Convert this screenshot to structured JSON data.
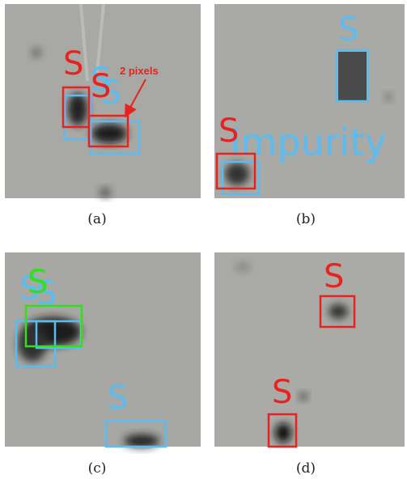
{
  "panels": [
    {
      "caption": "(a)",
      "labels": [
        "S",
        "S",
        "S",
        "S",
        "2 pixels"
      ]
    },
    {
      "caption": "(b)",
      "labels": [
        "S",
        "S",
        "Impurity"
      ]
    },
    {
      "caption": "(c)",
      "labels": [
        "S",
        "S",
        "S",
        "S"
      ]
    },
    {
      "caption": "(d)",
      "labels": [
        "S",
        "S"
      ]
    }
  ]
}
